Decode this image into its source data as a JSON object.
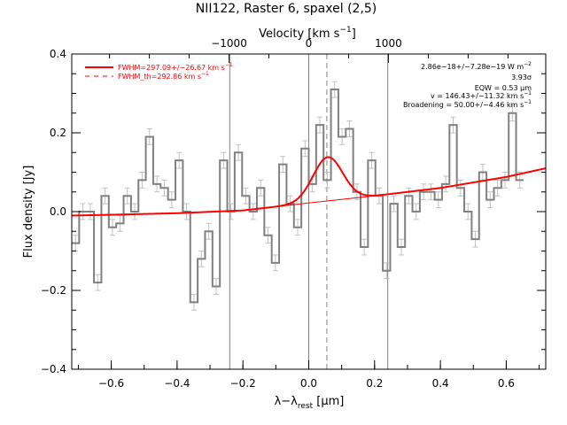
{
  "chart_data": {
    "type": "line",
    "title": "NII122, Raster 6, spaxel (2,5)",
    "xlabel_main": "λ−λ",
    "xlabel_sub": "rest",
    "xlabel_unit_pre": " [",
    "xlabel_unit_mu": "μ",
    "xlabel_unit_post": "m]",
    "ylabel": "Flux density [Jy]",
    "top_axis_label": "Velocity [km s",
    "top_axis_label_sup": "−1",
    "top_axis_label_end": "]",
    "xlim": [
      -0.72,
      0.72
    ],
    "ylim": [
      -0.4,
      0.4
    ],
    "x_ticks": [
      -0.6,
      -0.4,
      -0.2,
      0.0,
      0.2,
      0.4,
      0.6
    ],
    "x_tick_labels": [
      "−0.6",
      "−0.4",
      "−0.2",
      "0.0",
      "0.2",
      "0.4",
      "0.6"
    ],
    "y_ticks": [
      -0.4,
      -0.2,
      0.0,
      0.2,
      0.4
    ],
    "y_tick_labels": [
      "−0.4",
      "−0.2",
      "0.0",
      "0.2",
      "0.4"
    ],
    "top_ticks_velocity": [
      -1000,
      0,
      1000
    ],
    "top_tick_labels": [
      "−1000",
      "0",
      "1000"
    ],
    "velocity_per_micron": 4130,
    "legend": [
      {
        "label": "FWHM=297.09+/−26.67 km s",
        "sup": "−1",
        "style": "solid",
        "color": "#ff0000"
      },
      {
        "label": "FWHM_th=292.86 km s",
        "sup": "−1",
        "style": "dashed",
        "color": "#ff0000"
      }
    ],
    "annotations": [
      {
        "text": "2.86e−18+/−7.28e−19 W m",
        "sup": "−2"
      },
      {
        "text": "3.93σ",
        "sup": ""
      },
      {
        "text": "EQW = 0.53 μm",
        "sup": ""
      },
      {
        "text": "v = 146.43+/−11.32 km s",
        "sup": "−1"
      },
      {
        "text": "Broadening = 50.00+/−4.46 km s",
        "sup": "−1"
      }
    ],
    "vlines_solid": [
      -0.24,
      0.0,
      0.24
    ],
    "vline_dashed": 0.055,
    "bin_edges_start": -0.72,
    "bin_width": 0.0225,
    "spectrum_values": [
      -0.08,
      0.0,
      0.0,
      -0.18,
      0.04,
      -0.04,
      -0.03,
      0.04,
      0.0,
      0.08,
      0.19,
      0.07,
      0.06,
      0.03,
      0.13,
      0.0,
      -0.23,
      -0.12,
      -0.05,
      -0.19,
      0.13,
      0.0,
      0.15,
      0.04,
      0.0,
      0.06,
      -0.06,
      -0.13,
      0.12,
      0.02,
      -0.04,
      0.16,
      0.07,
      0.22,
      0.08,
      0.31,
      0.19,
      0.21,
      0.05,
      -0.09,
      0.13,
      0.04,
      -0.15,
      0.02,
      -0.09,
      0.04,
      0.0,
      0.05,
      0.05,
      0.03,
      0.07,
      0.22,
      0.06,
      0.0,
      -0.07,
      0.1,
      0.03,
      0.06,
      0.08,
      0.25,
      0.08
    ],
    "errors": [
      0.02,
      0.02,
      0.02,
      0.02,
      0.02,
      0.02,
      0.02,
      0.02,
      0.02,
      0.02,
      0.02,
      0.02,
      0.02,
      0.02,
      0.02,
      0.02,
      0.02,
      0.02,
      0.02,
      0.02,
      0.02,
      0.02,
      0.02,
      0.02,
      0.02,
      0.02,
      0.02,
      0.02,
      0.02,
      0.02,
      0.02,
      0.02,
      0.02,
      0.02,
      0.02,
      0.02,
      0.02,
      0.02,
      0.02,
      0.02,
      0.02,
      0.02,
      0.02,
      0.02,
      0.02,
      0.02,
      0.02,
      0.02,
      0.02,
      0.02,
      0.02,
      0.02,
      0.02,
      0.02,
      0.02,
      0.02,
      0.02,
      0.02,
      0.02,
      0.02,
      0.02
    ],
    "continuum": {
      "x": [
        -0.72,
        -0.6,
        -0.4,
        -0.2,
        0.0,
        0.2,
        0.4,
        0.6,
        0.72
      ],
      "y": [
        -0.01,
        -0.008,
        -0.004,
        0.003,
        0.022,
        0.04,
        0.06,
        0.088,
        0.11
      ]
    },
    "line_fit": {
      "center": 0.058,
      "amplitude": 0.111,
      "sigma": 0.045
    },
    "colors": {
      "spectrum": "#808080",
      "fit": "#ff0000",
      "vlines": "#808080"
    }
  }
}
